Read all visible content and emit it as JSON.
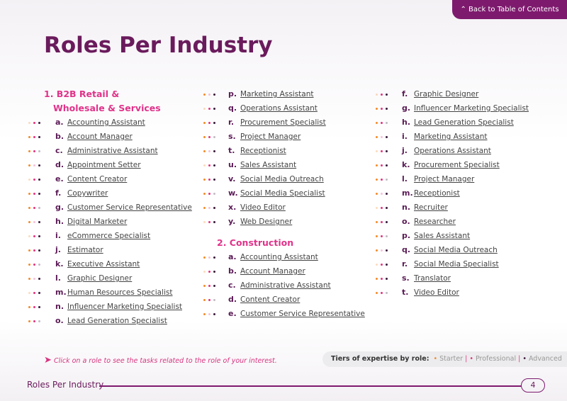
{
  "nav": {
    "back": "Back to Table of Contents"
  },
  "title": "Roles Per Industry",
  "sections": [
    {
      "heading": "1. B2B Retail & Wholesale & Services",
      "items": [
        {
          "letter": "a.",
          "name": "Accounting Assistant"
        },
        {
          "letter": "b.",
          "name": "Account Manager"
        },
        {
          "letter": "c.",
          "name": "Administrative Assistant"
        },
        {
          "letter": "d.",
          "name": "Appointment Setter"
        },
        {
          "letter": "e.",
          "name": "Content Creator"
        },
        {
          "letter": "f.",
          "name": "Copywriter"
        },
        {
          "letter": "g.",
          "name": "Customer Service Representative"
        },
        {
          "letter": "h.",
          "name": "Digital Marketer"
        },
        {
          "letter": "i.",
          "name": "eCommerce Specialist"
        },
        {
          "letter": "j.",
          "name": "Estimator"
        },
        {
          "letter": "k.",
          "name": "Executive Assistant"
        },
        {
          "letter": "l.",
          "name": "Graphic Designer"
        },
        {
          "letter": "m.",
          "name": "Human Resources Specialist"
        },
        {
          "letter": "n.",
          "name": "Influencer Marketing Specialist"
        },
        {
          "letter": "o.",
          "name": "Lead Generation Specialist"
        },
        {
          "letter": "p.",
          "name": "Marketing Assistant"
        },
        {
          "letter": "q.",
          "name": "Operations Assistant"
        },
        {
          "letter": "r.",
          "name": "Procurement Specialist"
        },
        {
          "letter": "s.",
          "name": "Project Manager"
        },
        {
          "letter": "t.",
          "name": "Receptionist"
        },
        {
          "letter": "u.",
          "name": "Sales Assistant"
        },
        {
          "letter": "v.",
          "name": "Social Media Outreach"
        },
        {
          "letter": "w.",
          "name": "Social Media Specialist"
        },
        {
          "letter": "x.",
          "name": "Video Editor"
        },
        {
          "letter": "y.",
          "name": "Web Designer"
        }
      ]
    },
    {
      "heading": "2. Construction",
      "items": [
        {
          "letter": "a.",
          "name": "Accounting Assistant"
        },
        {
          "letter": "b.",
          "name": "Account Manager"
        },
        {
          "letter": "c.",
          "name": "Administrative Assistant"
        },
        {
          "letter": "d.",
          "name": "Content Creator"
        },
        {
          "letter": "e.",
          "name": "Customer Service Representative"
        },
        {
          "letter": "f.",
          "name": "Graphic Designer"
        },
        {
          "letter": "g.",
          "name": "Influencer Marketing Specialist"
        },
        {
          "letter": "h.",
          "name": "Lead Generation Specialist"
        },
        {
          "letter": "i.",
          "name": "Marketing Assistant"
        },
        {
          "letter": "j.",
          "name": "Operations Assistant"
        },
        {
          "letter": "k.",
          "name": "Procurement Specialist"
        },
        {
          "letter": "l.",
          "name": "Project Manager"
        },
        {
          "letter": "m.",
          "name": "Receptionist"
        },
        {
          "letter": "n.",
          "name": "Recruiter"
        },
        {
          "letter": "o.",
          "name": "Researcher"
        },
        {
          "letter": "p.",
          "name": "Sales Assistant"
        },
        {
          "letter": "q.",
          "name": "Social Media Outreach"
        },
        {
          "letter": "r.",
          "name": "Social Media Specialist"
        },
        {
          "letter": "s.",
          "name": "Translator"
        },
        {
          "letter": "t.",
          "name": "Video Editor"
        }
      ]
    }
  ],
  "footer": {
    "hint": "Click on a role to see the tasks related to the role of your interest.",
    "tiers_label": "Tiers of expertise by role:",
    "tiers": [
      "Starter",
      "Professional",
      "Advanced"
    ],
    "section": "Roles Per Industry",
    "page": "4"
  }
}
